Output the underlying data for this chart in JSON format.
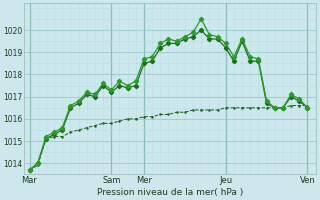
{
  "xlabel": "Pression niveau de la mer( hPa )",
  "background_color": "#cce8ec",
  "grid_color_minor": "#b8dce0",
  "grid_color_major": "#99c8cc",
  "line_color_1": "#1a5c20",
  "line_color_2": "#1a6e1a",
  "line_color_3": "#2a9a2a",
  "ylim": [
    1013.5,
    1021.2
  ],
  "yticks": [
    1014,
    1015,
    1016,
    1017,
    1018,
    1019,
    1020
  ],
  "x_day_labels": [
    "Mar",
    "Sam",
    "Mer",
    "Jeu",
    "Ven"
  ],
  "x_day_positions": [
    0,
    60,
    84,
    144,
    204
  ],
  "vline_positions": [
    0,
    60,
    84,
    144,
    204
  ],
  "series1_x": [
    0,
    6,
    12,
    18,
    24,
    30,
    36,
    42,
    48,
    54,
    60,
    66,
    72,
    78,
    84,
    90,
    96,
    102,
    108,
    114,
    120,
    126,
    132,
    138,
    144,
    150,
    156,
    162,
    168,
    174,
    180,
    186,
    192,
    198,
    204
  ],
  "series1_y": [
    1013.7,
    1013.9,
    1015.1,
    1015.2,
    1015.2,
    1015.4,
    1015.5,
    1015.6,
    1015.7,
    1015.8,
    1015.8,
    1015.9,
    1016.0,
    1016.0,
    1016.1,
    1016.1,
    1016.2,
    1016.2,
    1016.3,
    1016.3,
    1016.4,
    1016.4,
    1016.4,
    1016.4,
    1016.5,
    1016.5,
    1016.5,
    1016.5,
    1016.5,
    1016.5,
    1016.5,
    1016.5,
    1016.6,
    1016.6,
    1016.6
  ],
  "series2_x": [
    0,
    6,
    12,
    18,
    24,
    30,
    36,
    42,
    48,
    54,
    60,
    66,
    72,
    78,
    84,
    90,
    96,
    102,
    108,
    114,
    120,
    126,
    132,
    138,
    144,
    150,
    156,
    162,
    168,
    174,
    180,
    186,
    192,
    198,
    204
  ],
  "series2_y": [
    1013.7,
    1014.0,
    1015.1,
    1015.3,
    1015.5,
    1016.5,
    1016.7,
    1017.1,
    1017.0,
    1017.5,
    1017.2,
    1017.5,
    1017.4,
    1017.5,
    1018.5,
    1018.6,
    1019.2,
    1019.4,
    1019.4,
    1019.6,
    1019.7,
    1020.0,
    1019.6,
    1019.6,
    1019.2,
    1018.6,
    1019.5,
    1018.6,
    1018.6,
    1016.7,
    1016.5,
    1016.5,
    1017.0,
    1016.8,
    1016.5
  ],
  "series3_x": [
    0,
    6,
    12,
    18,
    24,
    30,
    36,
    42,
    48,
    54,
    60,
    66,
    72,
    78,
    84,
    90,
    96,
    102,
    108,
    114,
    120,
    126,
    132,
    138,
    144,
    150,
    156,
    162,
    168,
    174,
    180,
    186,
    192,
    198,
    204
  ],
  "series3_y": [
    1013.7,
    1014.0,
    1015.2,
    1015.4,
    1015.6,
    1016.6,
    1016.8,
    1017.2,
    1017.1,
    1017.6,
    1017.3,
    1017.7,
    1017.5,
    1017.7,
    1018.7,
    1018.8,
    1019.4,
    1019.6,
    1019.5,
    1019.7,
    1019.9,
    1020.5,
    1019.8,
    1019.7,
    1019.4,
    1018.8,
    1019.6,
    1018.8,
    1018.7,
    1016.8,
    1016.5,
    1016.5,
    1017.1,
    1016.9,
    1016.5
  ]
}
